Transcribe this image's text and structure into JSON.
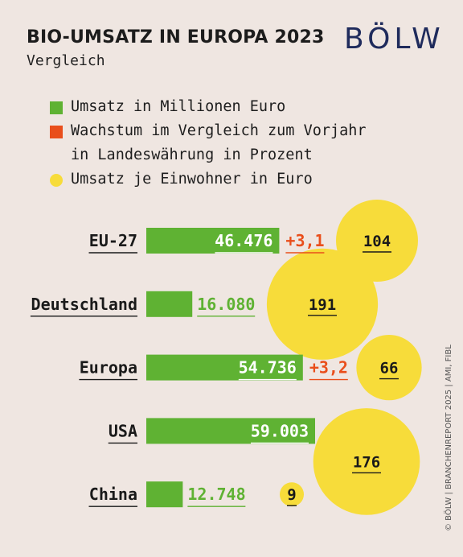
{
  "header": {
    "title": "BIO-UMSATZ IN EUROPA 2023",
    "subtitle": "Vergleich",
    "logo": "BÖLW"
  },
  "legend": {
    "umsatz": "Umsatz in Millionen Euro",
    "wachstum_line1": "Wachstum im Vergleich zum Vorjahr",
    "wachstum_line2": "in Landeswährung in Prozent",
    "einwohner": "Umsatz je Einwohner in Euro"
  },
  "credit": "© BÖLW | BRANCHENREPORT 2025 | AMI, FIBL",
  "colors": {
    "bar": "#5fb233",
    "growth": "#e94e1b",
    "bubble": "#f7dc3a",
    "background": "#efe6e1"
  },
  "chart_data": {
    "type": "bar",
    "categories": [
      "EU-27",
      "Deutschland",
      "Europa",
      "USA",
      "China"
    ],
    "series": [
      {
        "name": "Umsatz in Millionen Euro",
        "values": [
          46476,
          16080,
          54736,
          59003,
          12748
        ],
        "labels": [
          "46.476",
          "16.080",
          "54.736",
          "59.003",
          "12.748"
        ]
      },
      {
        "name": "Wachstum im Vergleich zum Vorjahr in Landeswährung in Prozent",
        "values": [
          3.1,
          null,
          3.2,
          null,
          null
        ],
        "labels": [
          "+3,1",
          "",
          "+3,2",
          "",
          ""
        ]
      },
      {
        "name": "Umsatz je Einwohner in Euro",
        "values": [
          104,
          191,
          66,
          176,
          9
        ],
        "labels": [
          "104",
          "191",
          "66",
          "176",
          "9"
        ]
      }
    ],
    "xlabel": "",
    "ylabel": ""
  }
}
